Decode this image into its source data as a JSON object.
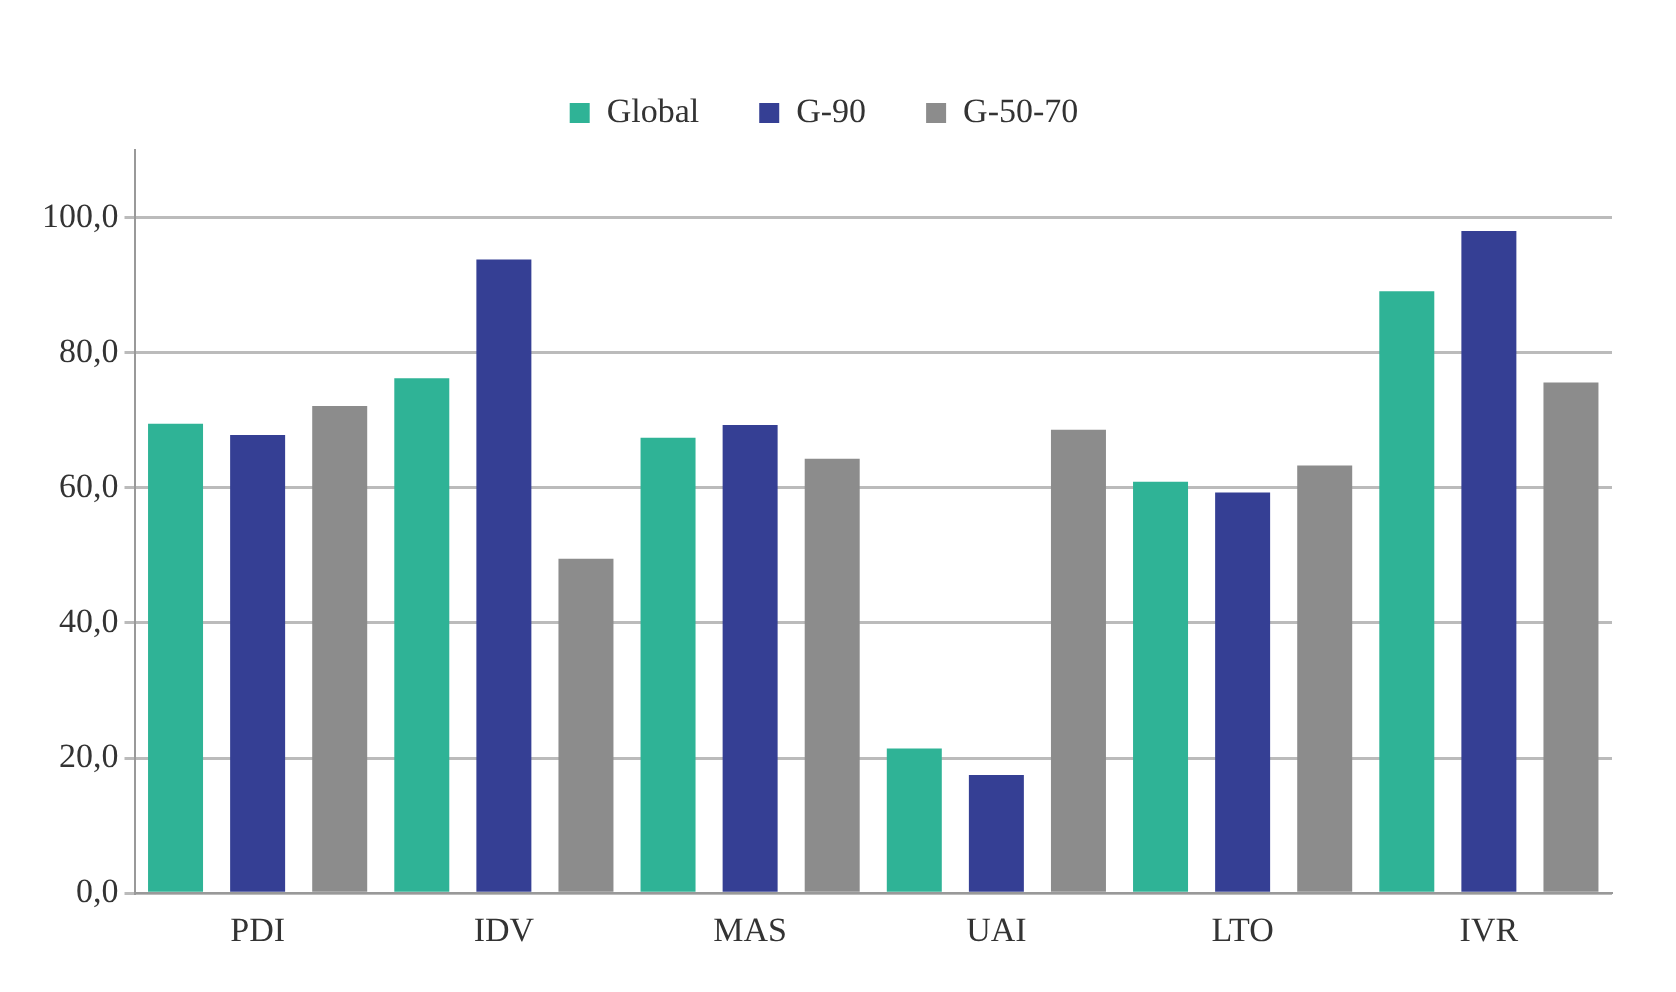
{
  "chart_data": {
    "type": "bar",
    "categories": [
      "PDI",
      "IDV",
      "MAS",
      "UAI",
      "LTO",
      "IVR"
    ],
    "series": [
      {
        "name": "Global",
        "color": "#2fb396",
        "values": [
          69.5,
          76.2,
          67.4,
          21.4,
          60.9,
          89.1
        ]
      },
      {
        "name": "G-90",
        "color": "#353f94",
        "values": [
          67.8,
          93.8,
          69.3,
          17.5,
          59.3,
          98.0
        ]
      },
      {
        "name": "G-50-70",
        "color": "#8c8c8c",
        "values": [
          72.1,
          49.5,
          64.3,
          68.6,
          63.3,
          75.6
        ]
      }
    ],
    "ylim": [
      0,
      110
    ],
    "yticks": [
      {
        "value": 0,
        "label": "0,0"
      },
      {
        "value": 20,
        "label": "20,0"
      },
      {
        "value": 40,
        "label": "40,0"
      },
      {
        "value": 60,
        "label": "60,0"
      },
      {
        "value": 80,
        "label": "80,0"
      },
      {
        "value": 100,
        "label": "100,0"
      }
    ],
    "grid": "y",
    "legend": "top"
  }
}
